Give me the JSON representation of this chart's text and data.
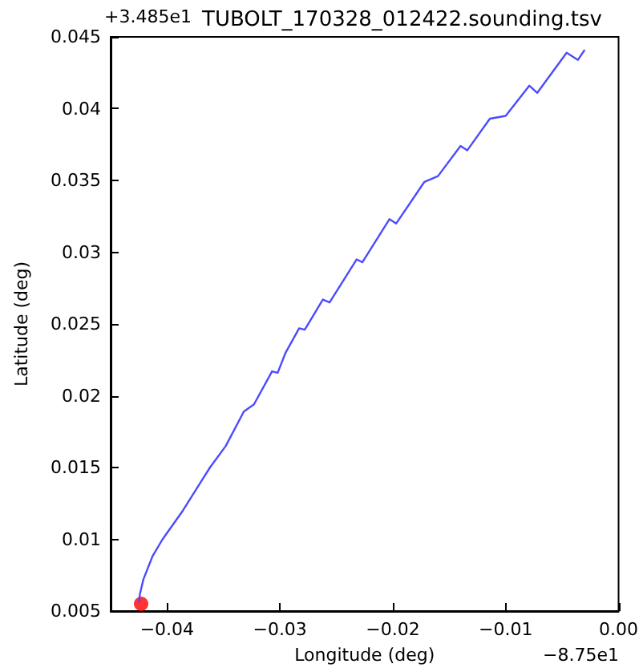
{
  "chart_data": {
    "type": "line",
    "title": "TUBOLT_170328_012422.sounding.tsv",
    "xlabel": "Longitude (deg)",
    "ylabel": "Latitude (deg)",
    "annotations": [
      "+3.485e1",
      "−8.75e1"
    ],
    "xlim": [
      -0.045,
      0
    ],
    "xticks": [
      {
        "value": -0.04,
        "label": "−0.04"
      },
      {
        "value": -0.03,
        "label": "−0.03"
      },
      {
        "value": -0.02,
        "label": "−0.02"
      },
      {
        "value": -0.01,
        "label": "−0.01"
      },
      {
        "value": 0,
        "label": "0.00"
      }
    ],
    "ylim": [
      0.005,
      0.045
    ],
    "yticks": [
      0.005,
      0.01,
      0.015,
      0.02,
      0.025,
      0.03,
      0.035,
      0.04,
      0.045
    ],
    "grid": false,
    "series": [
      {
        "marker": "none",
        "color": "#4b4bff",
        "x": [
          -0.0425,
          -0.0424,
          -0.0421,
          -0.0413,
          -0.0404,
          -0.0386,
          -0.0362,
          -0.0348,
          -0.0332,
          -0.0323,
          -0.0307,
          -0.0302,
          -0.0295,
          -0.0283,
          -0.0278,
          -0.0262,
          -0.0256,
          -0.0232,
          -0.0227,
          -0.0203,
          -0.0197,
          -0.0172,
          -0.016,
          -0.014,
          -0.0134,
          -0.0114,
          -0.01,
          -0.0079,
          -0.0072,
          -0.0046,
          -0.0036,
          -0.003
        ],
        "values": [
          0.0056,
          0.0062,
          0.0072,
          0.0088,
          0.01,
          0.012,
          0.015,
          0.0165,
          0.0189,
          0.0194,
          0.0217,
          0.0216,
          0.023,
          0.0247,
          0.0246,
          0.0267,
          0.0265,
          0.0295,
          0.0293,
          0.0323,
          0.032,
          0.0349,
          0.0353,
          0.0374,
          0.0371,
          0.0393,
          0.0395,
          0.0416,
          0.0411,
          0.0439,
          0.0434,
          0.0441
        ]
      },
      {
        "type": "scatter",
        "marker": "circle",
        "color": "#ff0000",
        "x": [
          -0.0423
        ],
        "values": [
          0.0055
        ]
      }
    ]
  }
}
